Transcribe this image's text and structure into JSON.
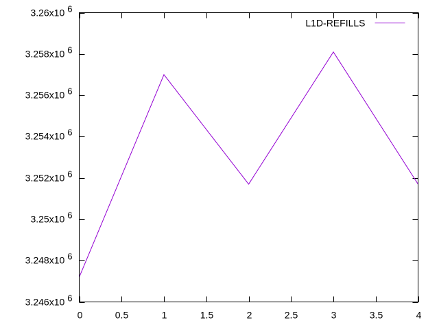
{
  "chart_data": {
    "type": "line",
    "title": "",
    "xlabel": "",
    "ylabel": "",
    "xlim": [
      0,
      4
    ],
    "ylim": [
      3246000,
      3260000
    ],
    "x_ticks": [
      {
        "value": 0,
        "label": "0"
      },
      {
        "value": 0.5,
        "label": "0.5"
      },
      {
        "value": 1,
        "label": "1"
      },
      {
        "value": 1.5,
        "label": "1.5"
      },
      {
        "value": 2,
        "label": "2"
      },
      {
        "value": 2.5,
        "label": "2.5"
      },
      {
        "value": 3,
        "label": "3"
      },
      {
        "value": 3.5,
        "label": "3.5"
      },
      {
        "value": 4,
        "label": "4"
      }
    ],
    "y_ticks": [
      {
        "value": 3246000,
        "mantissa": "3.246x10",
        "exponent": "6"
      },
      {
        "value": 3248000,
        "mantissa": "3.248x10",
        "exponent": "6"
      },
      {
        "value": 3250000,
        "mantissa": "3.25x10",
        "exponent": "6"
      },
      {
        "value": 3252000,
        "mantissa": "3.252x10",
        "exponent": "6"
      },
      {
        "value": 3254000,
        "mantissa": "3.254x10",
        "exponent": "6"
      },
      {
        "value": 3256000,
        "mantissa": "3.256x10",
        "exponent": "6"
      },
      {
        "value": 3258000,
        "mantissa": "3.258x10",
        "exponent": "6"
      },
      {
        "value": 3260000,
        "mantissa": "3.26x10",
        "exponent": "6"
      }
    ],
    "grid": false,
    "legend_position": "top-right",
    "series": [
      {
        "name": "L1D-REFILLS",
        "color": "#9400d3",
        "x": [
          0,
          1,
          2,
          3,
          4
        ],
        "y": [
          3247200,
          3257000,
          3251700,
          3258100,
          3251700
        ]
      }
    ]
  }
}
